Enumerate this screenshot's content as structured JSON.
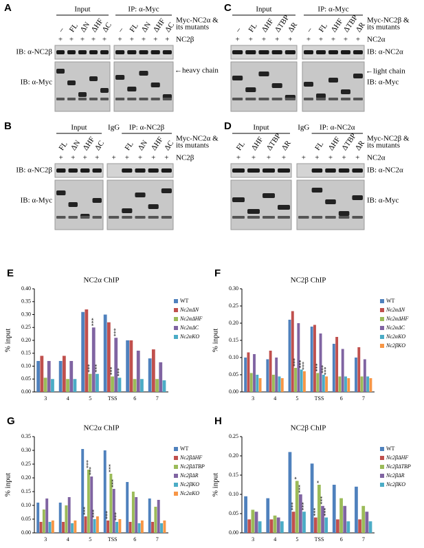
{
  "blots": [
    {
      "letter": "A",
      "headers": [
        "Input",
        "IP: α-Myc"
      ],
      "lanes": [
        [
          "–",
          "FL",
          "ΔN",
          "ΔHF",
          "ΔC"
        ],
        [
          "–",
          "FL",
          "ΔN",
          "ΔHF",
          "ΔC"
        ]
      ],
      "plus": [
        [
          "+",
          "+",
          "+",
          "+",
          "+"
        ],
        [
          "+",
          "+",
          "+",
          "+",
          "+"
        ]
      ],
      "rows": [
        "Myc-NC2α &",
        "its mutants",
        "NC2β"
      ],
      "ib": [
        "IB: α-NC2β",
        "IB: α-Myc"
      ],
      "notes": [
        "←heavy chain"
      ]
    },
    {
      "letter": "B",
      "headers": [
        "Input",
        "IgG",
        "IP: α-NC2β"
      ],
      "lanes": [
        [
          "FL",
          "ΔN",
          "ΔHF",
          "ΔC"
        ],
        [
          "FL",
          "ΔN",
          "ΔHF",
          "ΔC"
        ]
      ],
      "plus": [
        [
          "+",
          "+",
          "+",
          "+"
        ],
        [
          "+",
          "+",
          "+",
          "+",
          "+"
        ]
      ],
      "rows": [
        "Myc-NC2α &",
        "its mutants",
        "NC2β"
      ],
      "ib": [
        "IB: α-NC2β",
        "IB: α-Myc"
      ],
      "notes": []
    },
    {
      "letter": "C",
      "headers": [
        "Input",
        "IP: α-Myc"
      ],
      "lanes": [
        [
          "–",
          "FL",
          "ΔHF",
          "ΔTBP",
          "ΔR"
        ],
        [
          "–",
          "FL",
          "ΔHF",
          "ΔTBP",
          "ΔR"
        ]
      ],
      "plus": [
        [
          "+",
          "+",
          "+",
          "+",
          "+"
        ],
        [
          "+",
          "+",
          "+",
          "+",
          "+"
        ]
      ],
      "rows": [
        "Myc-NC2β &",
        "its mutants",
        "NC2α"
      ],
      "ib": [
        "IB: α-NC2α",
        "IB: α-Myc"
      ],
      "notes": [
        "←light chain"
      ]
    },
    {
      "letter": "D",
      "headers": [
        "Input",
        "IgG",
        "IP: α-NC2α"
      ],
      "lanes": [
        [
          "FL",
          "ΔHF",
          "ΔTBP",
          "ΔR"
        ],
        [
          "FL",
          "ΔHF",
          "ΔTBP",
          "ΔR"
        ]
      ],
      "plus": [
        [
          "+",
          "+",
          "+",
          "+"
        ],
        [
          "+",
          "+",
          "+",
          "+",
          "+"
        ]
      ],
      "rows": [
        "Myc-NC2β &",
        "its mutants",
        "NC2α"
      ],
      "ib": [
        "IB: α-NC2α",
        "IB: α-Myc"
      ],
      "notes": []
    }
  ],
  "chart_data": [
    {
      "type": "bar",
      "panel_label": "E",
      "title": "NC2α ChIP",
      "y_label": "% input",
      "categories": [
        "3",
        "4",
        "5",
        "TSS",
        "6",
        "7"
      ],
      "ylim": [
        0,
        0.4
      ],
      "yticks": [
        {
          "value": 0,
          "label": "0.00"
        },
        {
          "value": 0.05,
          "label": "0.05"
        },
        {
          "value": 0.1,
          "label": "0.10"
        },
        {
          "value": 0.15,
          "label": "0.15"
        },
        {
          "value": 0.2,
          "label": "0.20"
        },
        {
          "value": 0.25,
          "label": "0.25"
        },
        {
          "value": 0.3,
          "label": "0.30"
        },
        {
          "value": 0.35,
          "label": "0.35"
        },
        {
          "value": 0.4,
          "label": "0.40"
        }
      ],
      "series": [
        {
          "name": "WT",
          "color": "#4f81bd",
          "values": [
            0.12,
            0.12,
            0.31,
            0.3,
            0.2,
            0.13
          ]
        },
        {
          "name": "Nc2αΔN",
          "color": "#c0504d",
          "values": [
            0.14,
            0.14,
            0.32,
            0.27,
            0.2,
            0.165
          ]
        },
        {
          "name": "Nc2αΔHF",
          "color": "#9bbb59",
          "values": [
            0.055,
            0.05,
            0.07,
            0.06,
            0.05,
            0.05
          ]
        },
        {
          "name": "Nc2αΔC",
          "color": "#8064a2",
          "values": [
            0.12,
            0.12,
            0.25,
            0.21,
            0.16,
            0.115
          ]
        },
        {
          "name": "Nc2αKO",
          "color": "#4bacc6",
          "values": [
            0.05,
            0.05,
            0.07,
            0.055,
            0.05,
            0.045
          ]
        }
      ],
      "annotations": [
        {
          "text": "***",
          "category": 2,
          "series": 2
        },
        {
          "text": "***",
          "category": 2,
          "series": 3
        },
        {
          "text": "***",
          "category": 2,
          "series": 4
        },
        {
          "text": "***",
          "category": 3,
          "series": 2
        },
        {
          "text": "***",
          "category": 3,
          "series": 3
        },
        {
          "text": "***",
          "category": 3,
          "series": 4
        }
      ]
    },
    {
      "type": "bar",
      "panel_label": "F",
      "title": "NC2β ChIP",
      "y_label": "% input",
      "categories": [
        "3",
        "4",
        "5",
        "TSS",
        "6",
        "7"
      ],
      "ylim": [
        0,
        0.3
      ],
      "yticks": [
        {
          "value": 0,
          "label": "0.00"
        },
        {
          "value": 0.05,
          "label": "0.05"
        },
        {
          "value": 0.1,
          "label": "0.10"
        },
        {
          "value": 0.15,
          "label": "0.15"
        },
        {
          "value": 0.2,
          "label": "0.20"
        },
        {
          "value": 0.25,
          "label": "0.25"
        },
        {
          "value": 0.3,
          "label": "0.30"
        }
      ],
      "series": [
        {
          "name": "WT",
          "color": "#4f81bd",
          "values": [
            0.1,
            0.095,
            0.21,
            0.19,
            0.14,
            0.1
          ]
        },
        {
          "name": "Nc2αΔN",
          "color": "#c0504d",
          "values": [
            0.115,
            0.12,
            0.235,
            0.195,
            0.16,
            0.13
          ]
        },
        {
          "name": "Nc2αΔHF",
          "color": "#9bbb59",
          "values": [
            0.055,
            0.05,
            0.07,
            0.055,
            0.045,
            0.045
          ]
        },
        {
          "name": "Nc2αΔC",
          "color": "#8064a2",
          "values": [
            0.11,
            0.1,
            0.2,
            0.17,
            0.125,
            0.095
          ]
        },
        {
          "name": "Nc2αKO",
          "color": "#4bacc6",
          "values": [
            0.05,
            0.045,
            0.065,
            0.05,
            0.045,
            0.045
          ]
        },
        {
          "name": "Nc2βKO",
          "color": "#f79646",
          "values": [
            0.04,
            0.04,
            0.06,
            0.045,
            0.04,
            0.04
          ]
        }
      ],
      "annotations": [
        {
          "text": "***",
          "category": 2,
          "series": 2
        },
        {
          "text": "***",
          "category": 2,
          "series": 4
        },
        {
          "text": "***",
          "category": 2,
          "series": 5
        },
        {
          "text": "***",
          "category": 3,
          "series": 2
        },
        {
          "text": "***",
          "category": 3,
          "series": 4
        },
        {
          "text": "***",
          "category": 3,
          "series": 5
        }
      ]
    },
    {
      "type": "bar",
      "panel_label": "G",
      "title": "NC2α ChIP",
      "y_label": "% input",
      "categories": [
        "3",
        "4",
        "5",
        "TSS",
        "6",
        "7"
      ],
      "ylim": [
        0,
        0.35
      ],
      "yticks": [
        {
          "value": 0,
          "label": "0.00"
        },
        {
          "value": 0.05,
          "label": "0.05"
        },
        {
          "value": 0.1,
          "label": "0.10"
        },
        {
          "value": 0.15,
          "label": "0.15"
        },
        {
          "value": 0.2,
          "label": "0.20"
        },
        {
          "value": 0.25,
          "label": "0.25"
        },
        {
          "value": 0.3,
          "label": "0.30"
        },
        {
          "value": 0.35,
          "label": "0.35"
        }
      ],
      "series": [
        {
          "name": "WT",
          "color": "#4f81bd",
          "values": [
            0.11,
            0.11,
            0.305,
            0.3,
            0.185,
            0.125
          ]
        },
        {
          "name": "Nc2βΔHF",
          "color": "#c0504d",
          "values": [
            0.04,
            0.04,
            0.06,
            0.045,
            0.04,
            0.04
          ]
        },
        {
          "name": "Nc2βΔTBP",
          "color": "#9bbb59",
          "values": [
            0.085,
            0.1,
            0.23,
            0.215,
            0.15,
            0.095
          ]
        },
        {
          "name": "Nc2βΔR",
          "color": "#8064a2",
          "values": [
            0.125,
            0.13,
            0.205,
            0.16,
            0.13,
            0.12
          ]
        },
        {
          "name": "Nc2βKO",
          "color": "#4bacc6",
          "values": [
            0.04,
            0.035,
            0.05,
            0.04,
            0.035,
            0.035
          ]
        },
        {
          "name": "Nc2αKO",
          "color": "#f79646",
          "values": [
            0.045,
            0.045,
            0.06,
            0.05,
            0.045,
            0.045
          ]
        }
      ],
      "annotations": [
        {
          "text": "***",
          "category": 2,
          "series": 1
        },
        {
          "text": "***",
          "category": 2,
          "series": 2
        },
        {
          "text": "***",
          "category": 2,
          "series": 3
        },
        {
          "text": "***",
          "category": 2,
          "series": 4
        },
        {
          "text": "***",
          "category": 3,
          "series": 1
        },
        {
          "text": "***",
          "category": 3,
          "series": 2
        },
        {
          "text": "***",
          "category": 3,
          "series": 3
        },
        {
          "text": "***",
          "category": 3,
          "series": 4
        }
      ]
    },
    {
      "type": "bar",
      "panel_label": "H",
      "title": "NC2β ChIP",
      "y_label": "% input",
      "categories": [
        "3",
        "4",
        "5",
        "TSS",
        "6",
        "7"
      ],
      "ylim": [
        0,
        0.25
      ],
      "yticks": [
        {
          "value": 0,
          "label": "0.00"
        },
        {
          "value": 0.05,
          "label": "0.05"
        },
        {
          "value": 0.1,
          "label": "0.10"
        },
        {
          "value": 0.15,
          "label": "0.15"
        },
        {
          "value": 0.2,
          "label": "0.20"
        },
        {
          "value": 0.25,
          "label": "0.25"
        }
      ],
      "series": [
        {
          "name": "WT",
          "color": "#4f81bd",
          "values": [
            0.095,
            0.09,
            0.21,
            0.18,
            0.125,
            0.12
          ]
        },
        {
          "name": "Nc2βΔHF",
          "color": "#c0504d",
          "values": [
            0.035,
            0.035,
            0.055,
            0.04,
            0.035,
            0.035
          ]
        },
        {
          "name": "Nc2βΔTBP",
          "color": "#9bbb59",
          "values": [
            0.06,
            0.045,
            0.135,
            0.125,
            0.09,
            0.07
          ]
        },
        {
          "name": "Nc2βΔR",
          "color": "#8064a2",
          "values": [
            0.055,
            0.04,
            0.1,
            0.07,
            0.07,
            0.055
          ]
        },
        {
          "name": "Nc2βKO",
          "color": "#4bacc6",
          "values": [
            0.03,
            0.03,
            0.055,
            0.04,
            0.03,
            0.03
          ]
        }
      ],
      "annotations": [
        {
          "text": "***",
          "category": 2,
          "series": 1
        },
        {
          "text": "*",
          "category": 2,
          "series": 2
        },
        {
          "text": "***",
          "category": 2,
          "series": 3
        },
        {
          "text": "***",
          "category": 2,
          "series": 4
        },
        {
          "text": "***",
          "category": 3,
          "series": 1
        },
        {
          "text": "*",
          "category": 3,
          "series": 2
        },
        {
          "text": "***",
          "category": 3,
          "series": 3
        },
        {
          "text": "***",
          "category": 3,
          "series": 4
        }
      ]
    }
  ]
}
